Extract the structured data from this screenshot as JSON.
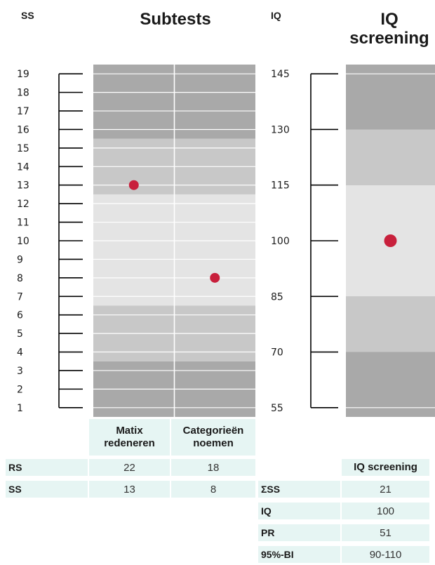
{
  "headers": {
    "ss": "SS",
    "subtests": "Subtests",
    "iq": "IQ",
    "iq_screening_line1": "IQ",
    "iq_screening_line2": "screening"
  },
  "chart_data": [
    {
      "type": "scatter",
      "title": "Subtests",
      "ylabel": "SS",
      "ylim": [
        1,
        19
      ],
      "y_ticks": [
        19,
        18,
        17,
        16,
        15,
        14,
        13,
        12,
        11,
        10,
        9,
        8,
        7,
        6,
        5,
        4,
        3,
        2,
        1
      ],
      "categories": [
        "Matix redeneren",
        "Categorieën noemen"
      ],
      "values": [
        13,
        8
      ],
      "point_color": "#c8203c",
      "bands": [
        {
          "from": 1,
          "to": 3,
          "color": "#a9a9a9"
        },
        {
          "from": 4,
          "to": 6,
          "color": "#c8c8c8"
        },
        {
          "from": 7,
          "to": 12,
          "color": "#e4e4e4"
        },
        {
          "from": 13,
          "to": 15,
          "color": "#c8c8c8"
        },
        {
          "from": 16,
          "to": 19,
          "color": "#a9a9a9"
        }
      ]
    },
    {
      "type": "scatter",
      "title": "IQ screening",
      "ylabel": "IQ",
      "ylim": [
        55,
        145
      ],
      "y_ticks": [
        145,
        130,
        115,
        100,
        85,
        70,
        55
      ],
      "categories": [
        "IQ screening"
      ],
      "values": [
        100
      ],
      "point_color": "#c8203c",
      "bands": [
        {
          "from": 55,
          "to": 70,
          "color": "#a9a9a9"
        },
        {
          "from": 70,
          "to": 85,
          "color": "#c8c8c8"
        },
        {
          "from": 85,
          "to": 115,
          "color": "#e4e4e4"
        },
        {
          "from": 115,
          "to": 130,
          "color": "#c8c8c8"
        },
        {
          "from": 130,
          "to": 145,
          "color": "#a9a9a9"
        }
      ]
    }
  ],
  "subtests_table": {
    "columns": [
      "Matix redeneren",
      "Categorieën noemen"
    ],
    "col1_line1": "Matix",
    "col1_line2": "redeneren",
    "col2_line1": "Categorieën",
    "col2_line2": "noemen",
    "rows": [
      {
        "label": "RS",
        "values": [
          "22",
          "18"
        ]
      },
      {
        "label": "SS",
        "values": [
          "13",
          "8"
        ]
      }
    ]
  },
  "iq_table": {
    "header": "IQ screening",
    "rows": [
      {
        "label": "ΣSS",
        "value": "21"
      },
      {
        "label": "IQ",
        "value": "100"
      },
      {
        "label": "PR",
        "value": "51"
      },
      {
        "label": "95%-BI",
        "value": "90-110"
      }
    ]
  }
}
